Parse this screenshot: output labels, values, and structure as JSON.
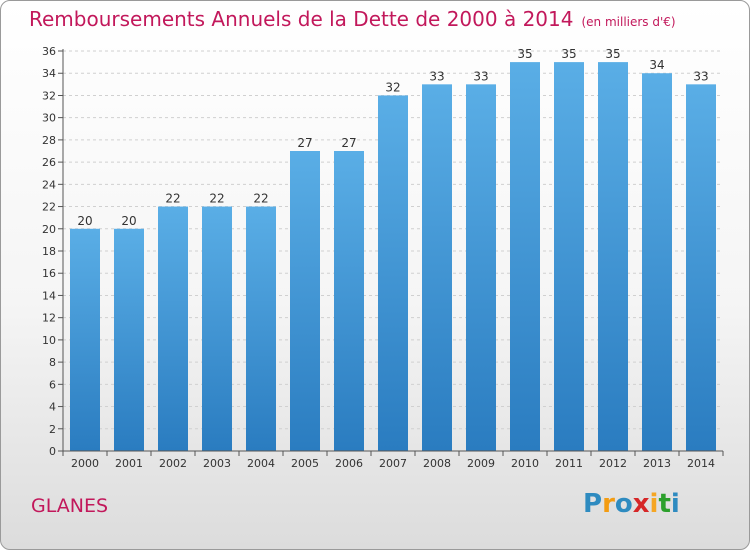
{
  "title": "Remboursements Annuels de la Dette de 2000 à 2014",
  "unit": "(en milliers d'€)",
  "place": "GLANES",
  "logo": {
    "letters": [
      "P",
      "r",
      "o",
      "x",
      "i",
      "t",
      "i"
    ],
    "colors": [
      "#2e8bc0",
      "#f39c12",
      "#2e8bc0",
      "#d62728",
      "#f5a623",
      "#2ca02c",
      "#2e8bc0"
    ]
  },
  "colors": {
    "bar_top": "#5aaee6",
    "bar_bottom": "#2a7cc0",
    "accent": "#c2185b"
  },
  "chart_data": {
    "type": "bar",
    "categories": [
      "2000",
      "2001",
      "2002",
      "2003",
      "2004",
      "2005",
      "2006",
      "2007",
      "2008",
      "2009",
      "2010",
      "2011",
      "2012",
      "2013",
      "2014"
    ],
    "values": [
      20,
      20,
      22,
      22,
      22,
      27,
      27,
      32,
      33,
      33,
      35,
      35,
      35,
      34,
      33
    ],
    "ylim": [
      0,
      36
    ],
    "yticks": [
      0,
      2,
      4,
      6,
      8,
      10,
      12,
      14,
      16,
      18,
      20,
      22,
      24,
      26,
      28,
      30,
      32,
      34,
      36
    ],
    "grid": true
  }
}
